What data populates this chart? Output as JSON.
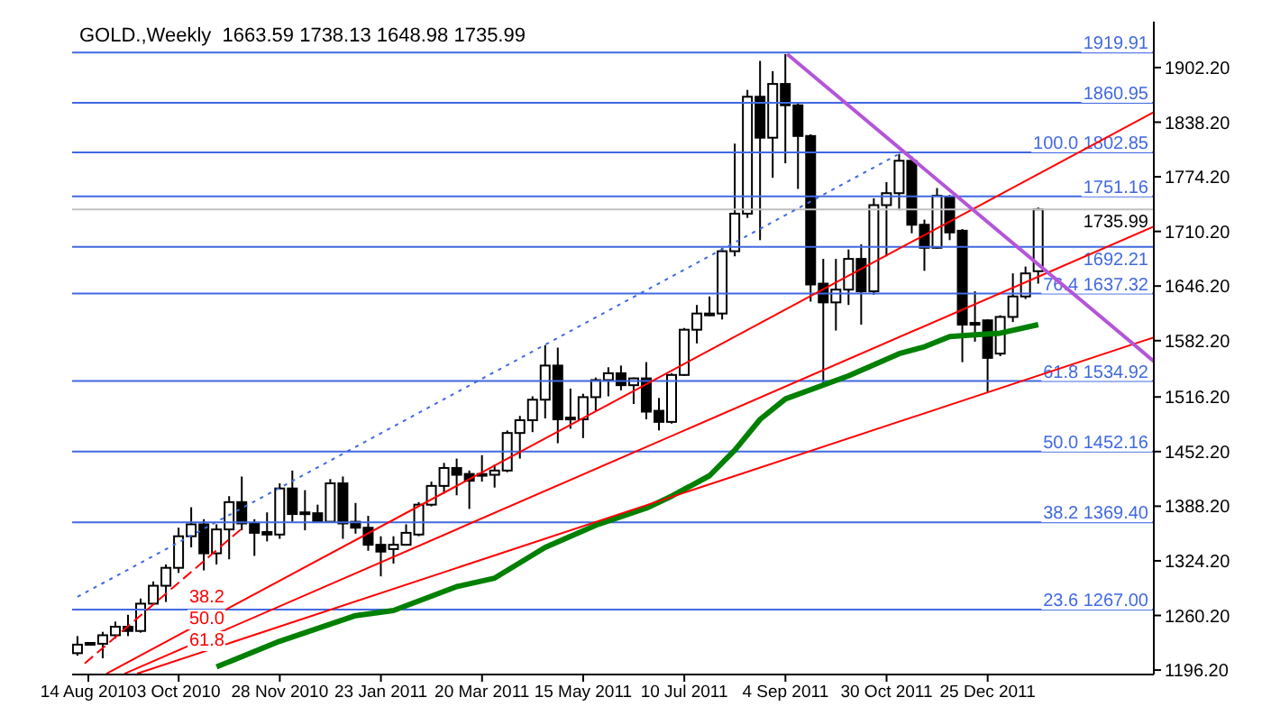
{
  "chart_data": {
    "type": "candlestick",
    "title": "GOLD.,Weekly  1663.59 1738.13 1648.98 1735.99",
    "x": [
      "2010-08-08",
      "2010-08-15",
      "2010-08-22",
      "2010-08-29",
      "2010-09-05",
      "2010-09-12",
      "2010-09-19",
      "2010-09-26",
      "2010-10-03",
      "2010-10-10",
      "2010-10-17",
      "2010-10-24",
      "2010-10-31",
      "2010-11-07",
      "2010-11-14",
      "2010-11-21",
      "2010-11-28",
      "2010-12-05",
      "2010-12-12",
      "2010-12-19",
      "2010-12-26",
      "2011-01-02",
      "2011-01-09",
      "2011-01-16",
      "2011-01-23",
      "2011-01-30",
      "2011-02-06",
      "2011-02-13",
      "2011-02-20",
      "2011-02-27",
      "2011-03-06",
      "2011-03-13",
      "2011-03-20",
      "2011-03-27",
      "2011-04-03",
      "2011-04-10",
      "2011-04-17",
      "2011-04-24",
      "2011-05-01",
      "2011-05-08",
      "2011-05-15",
      "2011-05-22",
      "2011-05-29",
      "2011-06-05",
      "2011-06-12",
      "2011-06-19",
      "2011-06-26",
      "2011-07-03",
      "2011-07-10",
      "2011-07-17",
      "2011-07-24",
      "2011-07-31",
      "2011-08-07",
      "2011-08-14",
      "2011-08-21",
      "2011-08-28",
      "2011-09-04",
      "2011-09-11",
      "2011-09-18",
      "2011-09-25",
      "2011-10-02",
      "2011-10-09",
      "2011-10-16",
      "2011-10-23",
      "2011-10-30",
      "2011-11-06",
      "2011-11-13",
      "2011-11-20",
      "2011-11-27",
      "2011-12-04",
      "2011-12-11",
      "2011-12-18",
      "2011-12-25",
      "2012-01-01",
      "2012-01-08",
      "2012-01-15",
      "2012-01-22"
    ],
    "ohlc": [
      [
        1216,
        1236,
        1213,
        1226
      ],
      [
        1227,
        1229,
        1225,
        1228
      ],
      [
        1227,
        1241,
        1210,
        1237
      ],
      [
        1237,
        1253,
        1233,
        1247
      ],
      [
        1247,
        1261,
        1236,
        1242
      ],
      [
        1242,
        1280,
        1240,
        1274
      ],
      [
        1274,
        1300,
        1273,
        1295
      ],
      [
        1295,
        1320,
        1276,
        1316
      ],
      [
        1316,
        1363,
        1310,
        1353
      ],
      [
        1353,
        1387,
        1340,
        1367
      ],
      [
        1367,
        1373,
        1313,
        1333
      ],
      [
        1333,
        1367,
        1320,
        1361
      ],
      [
        1361,
        1400,
        1326,
        1393
      ],
      [
        1393,
        1423,
        1360,
        1368
      ],
      [
        1368,
        1373,
        1330,
        1357
      ],
      [
        1358,
        1381,
        1347,
        1355
      ],
      [
        1355,
        1415,
        1350,
        1409
      ],
      [
        1409,
        1430,
        1370,
        1379
      ],
      [
        1381,
        1407,
        1360,
        1380
      ],
      [
        1380,
        1390,
        1369,
        1370
      ],
      [
        1370,
        1420,
        1369,
        1415
      ],
      [
        1415,
        1423,
        1350,
        1368
      ],
      [
        1370,
        1392,
        1356,
        1363
      ],
      [
        1363,
        1377,
        1336,
        1343
      ],
      [
        1343,
        1353,
        1306,
        1335
      ],
      [
        1338,
        1353,
        1321,
        1343
      ],
      [
        1343,
        1367,
        1342,
        1357
      ],
      [
        1355,
        1393,
        1353,
        1390
      ],
      [
        1390,
        1417,
        1388,
        1412
      ],
      [
        1412,
        1439,
        1403,
        1433
      ],
      [
        1433,
        1444,
        1401,
        1425
      ],
      [
        1426,
        1430,
        1385,
        1418
      ],
      [
        1426,
        1448,
        1417,
        1425
      ],
      [
        1425,
        1437,
        1410,
        1430
      ],
      [
        1430,
        1477,
        1428,
        1474
      ],
      [
        1474,
        1494,
        1444,
        1489
      ],
      [
        1489,
        1517,
        1475,
        1513
      ],
      [
        1513,
        1577,
        1491,
        1553
      ],
      [
        1553,
        1574,
        1462,
        1490
      ],
      [
        1492,
        1526,
        1479,
        1491
      ],
      [
        1490,
        1520,
        1468,
        1516
      ],
      [
        1516,
        1539,
        1500,
        1536
      ],
      [
        1536,
        1551,
        1517,
        1544
      ],
      [
        1544,
        1553,
        1524,
        1530
      ],
      [
        1530,
        1539,
        1508,
        1538
      ],
      [
        1538,
        1557,
        1490,
        1499
      ],
      [
        1500,
        1515,
        1477,
        1487
      ],
      [
        1487,
        1544,
        1485,
        1542
      ],
      [
        1542,
        1597,
        1541,
        1595
      ],
      [
        1595,
        1624,
        1579,
        1614
      ],
      [
        1613,
        1634,
        1611,
        1614
      ],
      [
        1614,
        1691,
        1607,
        1687
      ],
      [
        1687,
        1813,
        1681,
        1731
      ],
      [
        1731,
        1876,
        1726,
        1868
      ],
      [
        1868,
        1910,
        1700,
        1820
      ],
      [
        1820,
        1898,
        1773,
        1883
      ],
      [
        1883,
        1918,
        1790,
        1858
      ],
      [
        1858,
        1861,
        1760,
        1822
      ],
      [
        1822,
        1824,
        1628,
        1648
      ],
      [
        1649,
        1678,
        1531,
        1627
      ],
      [
        1627,
        1678,
        1594,
        1642
      ],
      [
        1642,
        1689,
        1624,
        1678
      ],
      [
        1678,
        1695,
        1601,
        1640
      ],
      [
        1640,
        1749,
        1636,
        1741
      ],
      [
        1741,
        1768,
        1681,
        1755
      ],
      [
        1755,
        1801,
        1735,
        1793
      ],
      [
        1793,
        1798,
        1708,
        1718
      ],
      [
        1718,
        1724,
        1664,
        1691
      ],
      [
        1691,
        1761,
        1690,
        1752
      ],
      [
        1751,
        1753,
        1700,
        1709
      ],
      [
        1711,
        1713,
        1557,
        1601
      ],
      [
        1603,
        1640,
        1581,
        1602
      ],
      [
        1606,
        1607,
        1522,
        1562
      ],
      [
        1567,
        1612,
        1564,
        1610
      ],
      [
        1610,
        1661,
        1604,
        1634
      ],
      [
        1634,
        1669,
        1631,
        1661
      ],
      [
        1663.59,
        1738.13,
        1648.98,
        1735.99
      ]
    ],
    "series": [
      {
        "type": "line",
        "color": "#008000",
        "x": [
          "2010-10-24",
          "2010-11-28",
          "2011-01-09",
          "2011-01-30",
          "2011-03-06",
          "2011-03-27",
          "2011-04-24",
          "2011-05-22",
          "2011-06-19",
          "2011-07-03",
          "2011-07-24",
          "2011-08-07",
          "2011-08-21",
          "2011-09-04",
          "2011-10-09",
          "2011-11-06",
          "2011-11-20",
          "2011-12-04",
          "2011-12-18",
          "2012-01-01",
          "2012-01-22"
        ],
        "values": [
          1200,
          1230,
          1260,
          1266,
          1294,
          1304,
          1340,
          1366,
          1386,
          1400,
          1424,
          1454,
          1490,
          1514,
          1541,
          1567,
          1575,
          1587,
          1589,
          1591,
          1601
        ]
      },
      {
        "type": "line",
        "color": "#ff0000",
        "x": [
          "2010-08-24",
          "2012-03-26"
        ],
        "values": [
          1192,
          1850
        ]
      },
      {
        "type": "line",
        "color": "#ff0000",
        "x": [
          "2010-09-03",
          "2012-03-26"
        ],
        "values": [
          1192,
          1716
        ]
      },
      {
        "type": "line",
        "color": "#ff0000",
        "x": [
          "2010-09-10",
          "2012-03-26"
        ],
        "values": [
          1192,
          1586
        ]
      },
      {
        "type": "line",
        "color": "#ff0000",
        "line_style": "dashed",
        "x": [
          "2010-08-12",
          "2010-11-08"
        ],
        "values": [
          1204,
          1364
        ]
      },
      {
        "type": "line",
        "color": "#4169e1",
        "line_style": "dotted",
        "x": [
          "2010-08-08",
          "2011-11-05"
        ],
        "values": [
          1282,
          1800
        ]
      },
      {
        "type": "line",
        "color": "#b455d8",
        "x": [
          "2011-09-05",
          "2012-03-26"
        ],
        "values": [
          1918,
          1558
        ]
      }
    ],
    "xlim": [
      "2010-08-05",
      "2012-03-26"
    ],
    "xticks": [
      {
        "value": "2010-08-14",
        "label": "14 Aug 2010"
      },
      {
        "value": "2010-10-03",
        "label": "3 Oct 2010"
      },
      {
        "value": "2010-11-28",
        "label": "28 Nov 2010"
      },
      {
        "value": "2011-01-23",
        "label": "23 Jan 2011"
      },
      {
        "value": "2011-03-20",
        "label": "20 Mar 2011"
      },
      {
        "value": "2011-05-15",
        "label": "15 May 2011"
      },
      {
        "value": "2011-07-10",
        "label": "10 Jul 2011"
      },
      {
        "value": "2011-09-04",
        "label": "4 Sep 2011"
      },
      {
        "value": "2011-10-30",
        "label": "30 Oct 2011"
      },
      {
        "value": "2011-12-25",
        "label": "25 Dec 2011"
      }
    ],
    "ylim": [
      1191,
      1956
    ],
    "yticks": [
      {
        "value": 1196.2,
        "label": "1196.20"
      },
      {
        "value": 1260.2,
        "label": "1260.20"
      },
      {
        "value": 1324.2,
        "label": "1324.20"
      },
      {
        "value": 1388.2,
        "label": "1388.20"
      },
      {
        "value": 1452.2,
        "label": "1452.20"
      },
      {
        "value": 1516.2,
        "label": "1516.20"
      },
      {
        "value": 1582.2,
        "label": "1582.20"
      },
      {
        "value": 1646.2,
        "label": "1646.20"
      },
      {
        "value": 1710.2,
        "label": "1710.20"
      },
      {
        "value": 1774.2,
        "label": "1774.20"
      },
      {
        "value": 1838.2,
        "label": "1838.20"
      },
      {
        "value": 1902.2,
        "label": "1902.20"
      }
    ],
    "ref_lines": [
      {
        "axis": "y",
        "value": 1919.91,
        "label": "1919.91",
        "color": "#4169e1"
      },
      {
        "axis": "y",
        "value": 1860.95,
        "label": "1860.95",
        "color": "#4169e1"
      },
      {
        "axis": "y",
        "value": 1802.85,
        "label": "100.0 1802.85",
        "color": "#4169e1"
      },
      {
        "axis": "y",
        "value": 1751.16,
        "label": "1751.16",
        "color": "#4169e1"
      },
      {
        "axis": "y",
        "value": 1735.99,
        "label": "1735.99",
        "color": "#c0c0c0"
      },
      {
        "axis": "y",
        "value": 1692.21,
        "label": "1692.21",
        "color": "#4169e1"
      },
      {
        "axis": "y",
        "value": 1637.32,
        "label": "76.4 1637.32",
        "color": "#4169e1"
      },
      {
        "axis": "y",
        "value": 1534.92,
        "label": "61.8 1534.92",
        "color": "#4169e1"
      },
      {
        "axis": "y",
        "value": 1452.16,
        "label": "50.0 1452.16",
        "color": "#4169e1"
      },
      {
        "axis": "y",
        "value": 1369.4,
        "label": "38.2 1369.40",
        "color": "#4169e1"
      },
      {
        "axis": "y",
        "value": 1267.0,
        "label": "23.6 1267.00",
        "color": "#4169e1"
      }
    ],
    "annotations": [
      "38.2",
      "50.0",
      "61.8"
    ]
  }
}
